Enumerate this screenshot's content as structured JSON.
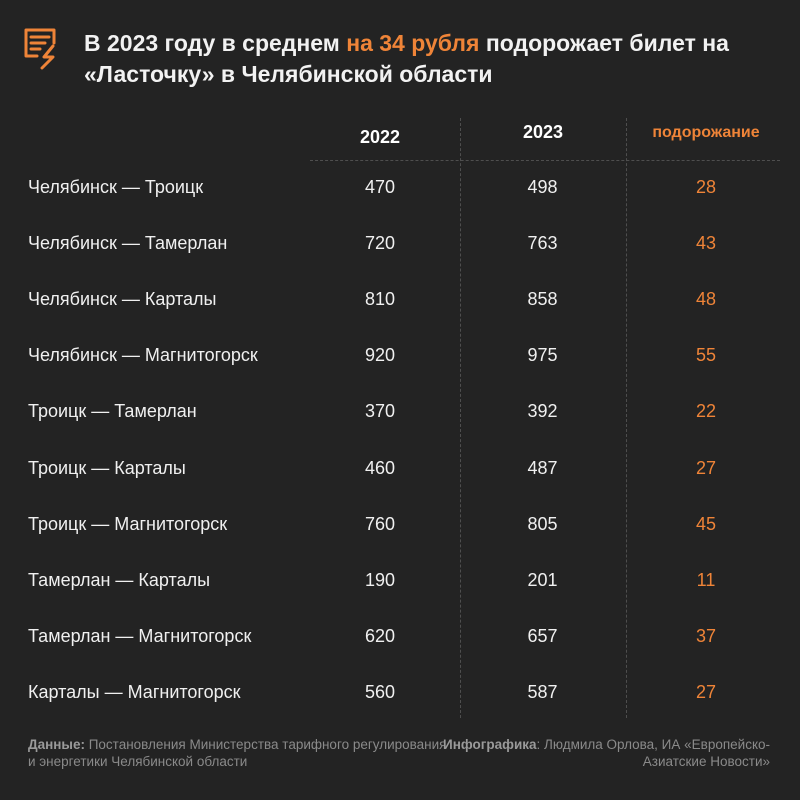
{
  "header": {
    "title_pre": "В 2023 году в среднем ",
    "title_highlight": "на 34 рубля",
    "title_post": " подорожает билет на «Ласточку» в Челябинской области",
    "logo_icon": "document-lightning-icon"
  },
  "colors": {
    "accent": "#ef8438",
    "background": "#232323",
    "text": "#ffffff"
  },
  "chart_data": {
    "type": "table",
    "columns": [
      "",
      "2022",
      "2023",
      "подорожание"
    ],
    "rows": [
      {
        "route": "Челябинск — Троицк",
        "y2022": 470,
        "y2023": 498,
        "increase": 28
      },
      {
        "route": "Челябинск — Тамерлан",
        "y2022": 720,
        "y2023": 763,
        "increase": 43
      },
      {
        "route": "Челябинск — Карталы",
        "y2022": 810,
        "y2023": 858,
        "increase": 48
      },
      {
        "route": "Челябинск — Магнитогорск",
        "y2022": 920,
        "y2023": 975,
        "increase": 55
      },
      {
        "route": "Троицк — Тамерлан",
        "y2022": 370,
        "y2023": 392,
        "increase": 22
      },
      {
        "route": "Троицк — Карталы",
        "y2022": 460,
        "y2023": 487,
        "increase": 27
      },
      {
        "route": "Троицк — Магнитогорск",
        "y2022": 760,
        "y2023": 805,
        "increase": 45
      },
      {
        "route": "Тамерлан — Карталы",
        "y2022": 190,
        "y2023": 201,
        "increase": 11
      },
      {
        "route": "Тамерлан — Магнитогорск",
        "y2022": 620,
        "y2023": 657,
        "increase": 37
      },
      {
        "route": "Карталы — Магнитогорск",
        "y2022": 560,
        "y2023": 587,
        "increase": 27
      }
    ]
  },
  "footer": {
    "data_label": "Данные:",
    "data_text": " Постановления Министерства тарифного регулирования и энергетики Челябинской области",
    "infographic_label": "Инфографика",
    "infographic_text": ": Людмила Орлова, ИА «Европейско-Азиатские Новости»"
  }
}
